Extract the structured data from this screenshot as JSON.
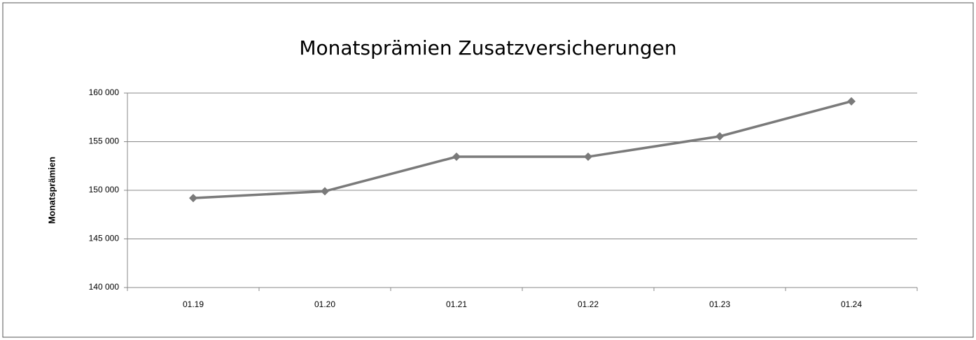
{
  "chart_data": {
    "type": "line",
    "title": "Monatsprämien Zusatzversicherungen",
    "y_label": "Monatsprämien",
    "categories": [
      "01.19",
      "01.20",
      "01.21",
      "01.22",
      "01.23",
      "01.24"
    ],
    "series": [
      {
        "name": "Monatsprämien",
        "color": "#7a7a7a",
        "values": [
          149200,
          149900,
          153450,
          153450,
          155550,
          159150
        ]
      }
    ],
    "ylim": [
      140000,
      160000
    ],
    "yticks": [
      {
        "value": 140000,
        "label": "140 000"
      },
      {
        "value": 145000,
        "label": "145 000"
      },
      {
        "value": 150000,
        "label": "150 000"
      },
      {
        "value": 155000,
        "label": "155 000"
      },
      {
        "value": 160000,
        "label": "160 000"
      }
    ],
    "grid": true
  }
}
